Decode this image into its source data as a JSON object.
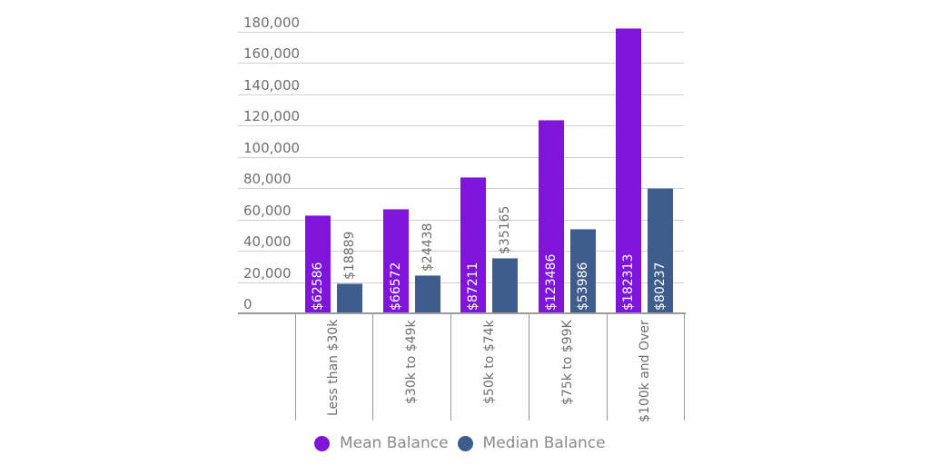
{
  "chart_data": {
    "type": "bar",
    "title": "",
    "xlabel": "",
    "ylabel": "",
    "ylim": [
      0,
      180000
    ],
    "yticks": [
      "0",
      "20,000",
      "40,000",
      "60,000",
      "80,000",
      "100,000",
      "120,000",
      "140,000",
      "160,000",
      "180,000"
    ],
    "grid": true,
    "legend_position": "bottom",
    "categories": [
      "Less than $30k",
      "$30k to $49k",
      "$50k to $74k",
      "$75k to $99K",
      "$100k and Over"
    ],
    "series": [
      {
        "name": "Mean Balance",
        "color": "#7f14da",
        "values": [
          62586,
          66572,
          87211,
          123486,
          182313
        ],
        "labels": [
          "$62586",
          "$66572",
          "$87211",
          "$123486",
          "$182313"
        ]
      },
      {
        "name": "Median Balance",
        "color": "#3f5d8c",
        "values": [
          18889,
          24438,
          35165,
          53986,
          80237
        ],
        "labels": [
          "$18889",
          "$24438",
          "$35165",
          "$53986",
          "$80237"
        ]
      }
    ]
  },
  "legend": {
    "items": [
      {
        "label": "Mean Balance",
        "color": "#7f14da"
      },
      {
        "label": "Median Balance",
        "color": "#3f5d8c"
      }
    ]
  }
}
